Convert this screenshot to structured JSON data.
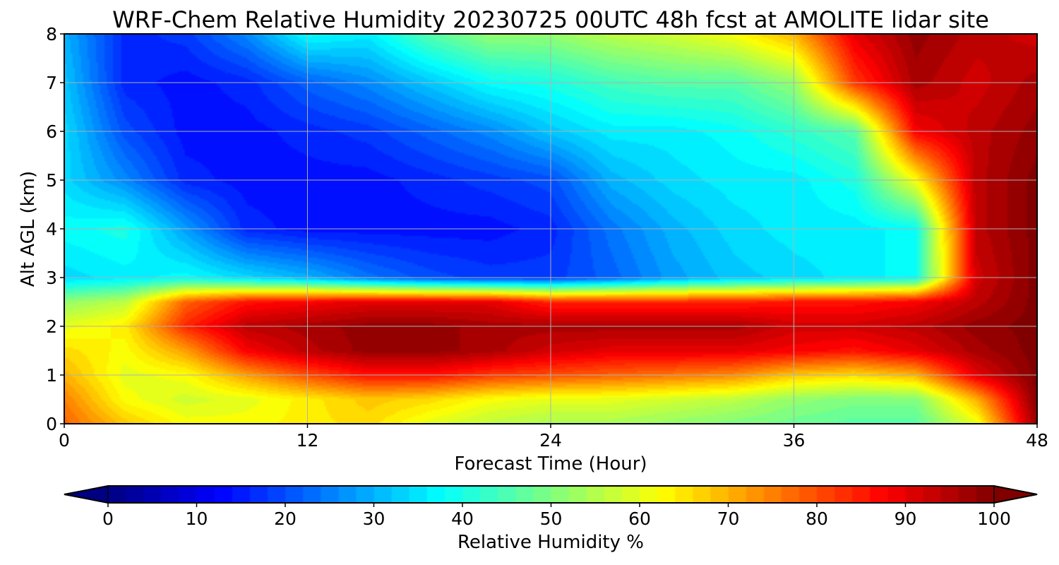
{
  "chart_data": {
    "type": "heatmap",
    "title": "WRF-Chem Relative Humidity 20230725 00UTC 48h fcst at AMOLITE lidar site",
    "xlabel": "Forecast Time (Hour)",
    "ylabel": "Alt AGL (km)",
    "xlim": [
      0,
      48
    ],
    "ylim": [
      0,
      8
    ],
    "x_ticks": [
      0,
      12,
      24,
      36,
      48
    ],
    "y_ticks": [
      0,
      1,
      2,
      3,
      4,
      5,
      6,
      7,
      8
    ],
    "grid": true,
    "x": [
      0,
      3,
      6,
      9,
      12,
      15,
      18,
      21,
      24,
      27,
      30,
      33,
      36,
      39,
      42,
      45,
      48
    ],
    "y": [
      0,
      0.5,
      1,
      1.5,
      2,
      2.5,
      3,
      4,
      5,
      6,
      7,
      8
    ],
    "z": [
      [
        78,
        68,
        62,
        62,
        64,
        66,
        60,
        56,
        54,
        54,
        52,
        50,
        48,
        46,
        46,
        60,
        98
      ],
      [
        75,
        62,
        58,
        60,
        64,
        68,
        66,
        62,
        60,
        60,
        58,
        56,
        52,
        50,
        50,
        70,
        100
      ],
      [
        70,
        60,
        62,
        72,
        80,
        86,
        86,
        82,
        80,
        78,
        76,
        74,
        68,
        66,
        70,
        90,
        100
      ],
      [
        66,
        62,
        72,
        88,
        94,
        98,
        98,
        96,
        92,
        90,
        90,
        90,
        88,
        86,
        90,
        96,
        100
      ],
      [
        60,
        64,
        84,
        94,
        96,
        98,
        98,
        96,
        96,
        96,
        96,
        96,
        92,
        92,
        94,
        98,
        100
      ],
      [
        52,
        56,
        78,
        86,
        88,
        90,
        90,
        90,
        84,
        84,
        84,
        84,
        86,
        86,
        88,
        94,
        100
      ],
      [
        34,
        36,
        38,
        34,
        30,
        24,
        20,
        18,
        18,
        22,
        28,
        32,
        34,
        36,
        38,
        92,
        100
      ],
      [
        38,
        40,
        28,
        16,
        14,
        14,
        14,
        14,
        16,
        24,
        30,
        34,
        36,
        36,
        38,
        94,
        100
      ],
      [
        34,
        26,
        16,
        14,
        14,
        14,
        16,
        18,
        20,
        30,
        34,
        36,
        36,
        40,
        62,
        94,
        100
      ],
      [
        34,
        20,
        14,
        14,
        16,
        18,
        22,
        26,
        32,
        36,
        36,
        38,
        42,
        46,
        88,
        94,
        98
      ],
      [
        32,
        16,
        14,
        16,
        22,
        26,
        32,
        38,
        40,
        44,
        46,
        46,
        52,
        82,
        96,
        92,
        96
      ],
      [
        30,
        16,
        18,
        26,
        38,
        36,
        46,
        52,
        52,
        56,
        58,
        62,
        70,
        90,
        98,
        94,
        92
      ]
    ],
    "colorbar": {
      "label": "Relative Humidity %",
      "min": 0,
      "max": 100,
      "ticks": [
        0,
        10,
        20,
        30,
        40,
        50,
        60,
        70,
        80,
        90,
        100
      ],
      "extend": "both",
      "colormap": "jet"
    }
  }
}
